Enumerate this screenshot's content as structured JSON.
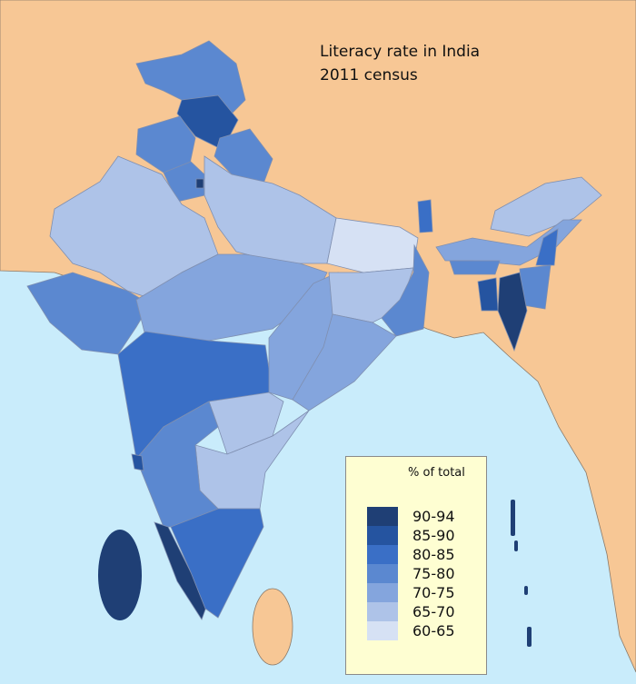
{
  "title": {
    "line1": "Literacy rate in India",
    "line2": "2011 census"
  },
  "colors": {
    "sea": "#c9ecfb",
    "foreign_land": "#f7c795",
    "border": "#7f8fb0"
  },
  "legend": {
    "title": "% of total",
    "items": [
      {
        "label": "90-94",
        "color": "#1f3f75"
      },
      {
        "label": "85-90",
        "color": "#2554a0"
      },
      {
        "label": "80-85",
        "color": "#3a6fc6"
      },
      {
        "label": "75-80",
        "color": "#5b88d0"
      },
      {
        "label": "70-75",
        "color": "#84a5dd"
      },
      {
        "label": "65-70",
        "color": "#aec3e8"
      },
      {
        "label": "60-65",
        "color": "#d6e1f4"
      }
    ]
  }
}
